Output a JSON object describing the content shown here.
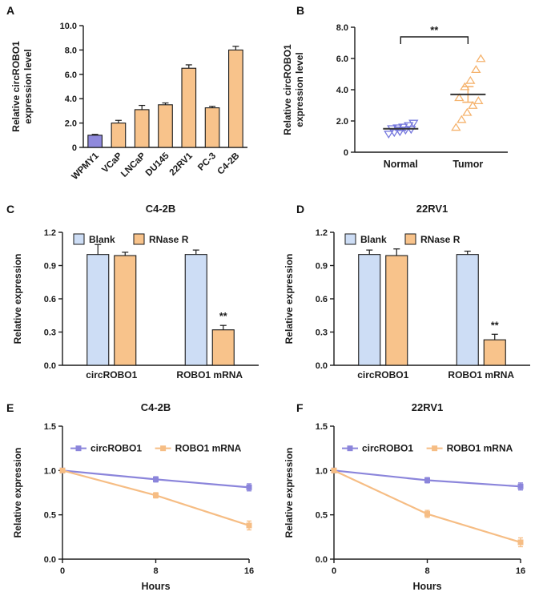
{
  "panel_labels": [
    "A",
    "B",
    "C",
    "D",
    "E",
    "F"
  ],
  "colors": {
    "ink": "#1a1a1a",
    "orange_fill": "#f8c38b",
    "purple_fill": "#8f89dc",
    "blue_fill": "#cdddf5",
    "scatter_normal": "#7678dd",
    "scatter_tumor": "#f5b36e",
    "line_circ": "#8b85db",
    "line_mrna": "#f6bd84"
  },
  "chart_data": [
    {
      "panel": "A",
      "type": "bar",
      "title": "",
      "ylabel": [
        "Relative circROBO1",
        "expression level"
      ],
      "ylim": [
        0,
        10
      ],
      "yticks": [
        0,
        2,
        4,
        6,
        8,
        10
      ],
      "ytick_labels": [
        "0",
        "2.0",
        "4.0",
        "6.0",
        "8.0",
        "10.0"
      ],
      "categories": [
        "WPMY1",
        "VCaP",
        "LNCaP",
        "DU145",
        "22RV1",
        "PC-3",
        "C4-2B"
      ],
      "values": [
        1.0,
        2.0,
        3.1,
        3.5,
        6.5,
        3.25,
        8.0
      ],
      "errors": [
        0.07,
        0.22,
        0.35,
        0.15,
        0.28,
        0.12,
        0.3
      ],
      "bar_colors": [
        "#8f89dc",
        "#f8c38b",
        "#f8c38b",
        "#f8c38b",
        "#f8c38b",
        "#f8c38b",
        "#f8c38b"
      ]
    },
    {
      "panel": "B",
      "type": "scatter",
      "ylabel": [
        "Relative circROBO1",
        "expression level"
      ],
      "ylim": [
        0,
        8
      ],
      "yticks": [
        0,
        2,
        4,
        6,
        8
      ],
      "ytick_labels": [
        "0",
        "2.0",
        "4.0",
        "6.0",
        "8.0"
      ],
      "significance": "**",
      "groups": [
        {
          "label": "Normal",
          "marker": "triangle-down",
          "color": "#7678dd",
          "points": [
            1.15,
            1.25,
            1.3,
            1.4,
            1.45,
            1.5,
            1.55,
            1.6,
            1.7,
            1.85
          ],
          "mean": 1.5,
          "sem": 0.1
        },
        {
          "label": "Tumor",
          "marker": "triangle-up",
          "color": "#f5b36e",
          "points": [
            1.6,
            2.1,
            2.55,
            3.0,
            3.3,
            3.5,
            4.2,
            4.6,
            5.3,
            6.0
          ],
          "mean": 3.7,
          "sem": 0.5
        }
      ]
    },
    {
      "panel": "C",
      "type": "grouped_bar",
      "title": "C4-2B",
      "ylabel": "Relative expression",
      "ylim": [
        0,
        1.2
      ],
      "yticks": [
        0,
        0.3,
        0.6,
        0.9,
        1.2
      ],
      "ytick_labels": [
        "0.0",
        "0.3",
        "0.6",
        "0.9",
        "1.2"
      ],
      "categories": [
        "circROBO1",
        "ROBO1 mRNA"
      ],
      "series": [
        {
          "name": "Blank",
          "color": "#cdddf5",
          "values": [
            1.0,
            1.0
          ],
          "errors": [
            0.09,
            0.04
          ]
        },
        {
          "name": "RNase R",
          "color": "#f8c38b",
          "values": [
            0.99,
            0.32
          ],
          "errors": [
            0.03,
            0.04
          ]
        }
      ],
      "significance": [
        {
          "category_index": 1,
          "series_index": 1,
          "label": "**"
        }
      ]
    },
    {
      "panel": "D",
      "type": "grouped_bar",
      "title": "22RV1",
      "ylabel": "Relative expression",
      "ylim": [
        0,
        1.2
      ],
      "yticks": [
        0,
        0.3,
        0.6,
        0.9,
        1.2
      ],
      "ytick_labels": [
        "0.0",
        "0.3",
        "0.6",
        "0.9",
        "1.2"
      ],
      "categories": [
        "circROBO1",
        "ROBO1 mRNA"
      ],
      "series": [
        {
          "name": "Blank",
          "color": "#cdddf5",
          "values": [
            1.0,
            1.0
          ],
          "errors": [
            0.04,
            0.03
          ]
        },
        {
          "name": "RNase R",
          "color": "#f8c38b",
          "values": [
            0.99,
            0.23
          ],
          "errors": [
            0.06,
            0.05
          ]
        }
      ],
      "significance": [
        {
          "category_index": 1,
          "series_index": 1,
          "label": "**"
        }
      ]
    },
    {
      "panel": "E",
      "type": "line",
      "title": "C4-2B",
      "ylabel": "Relative expression",
      "xlabel": "Hours",
      "x": [
        0,
        8,
        16
      ],
      "xtick_labels": [
        "0",
        "8",
        "16"
      ],
      "ylim": [
        0,
        1.5
      ],
      "yticks": [
        0,
        0.5,
        1.0,
        1.5
      ],
      "ytick_labels": [
        "0.0",
        "0.5",
        "1.0",
        "1.5"
      ],
      "series": [
        {
          "name": "circROBO1",
          "color": "#8b85db",
          "values": [
            1.0,
            0.9,
            0.81
          ],
          "errors": [
            0.015,
            0.03,
            0.04
          ]
        },
        {
          "name": "ROBO1 mRNA",
          "color": "#f6bd84",
          "values": [
            1.0,
            0.72,
            0.38
          ],
          "errors": [
            0.015,
            0.03,
            0.05
          ]
        }
      ]
    },
    {
      "panel": "F",
      "type": "line",
      "title": "22RV1",
      "ylabel": "Relative expression",
      "xlabel": "Hours",
      "x": [
        0,
        8,
        16
      ],
      "xtick_labels": [
        "0",
        "8",
        "16"
      ],
      "ylim": [
        0,
        1.5
      ],
      "yticks": [
        0,
        0.5,
        1.0,
        1.5
      ],
      "ytick_labels": [
        "0.0",
        "0.5",
        "1.0",
        "1.5"
      ],
      "series": [
        {
          "name": "circROBO1",
          "color": "#8b85db",
          "values": [
            1.0,
            0.89,
            0.82
          ],
          "errors": [
            0.015,
            0.03,
            0.04
          ]
        },
        {
          "name": "ROBO1 mRNA",
          "color": "#f6bd84",
          "values": [
            1.0,
            0.51,
            0.19
          ],
          "errors": [
            0.015,
            0.04,
            0.05
          ]
        }
      ]
    }
  ]
}
